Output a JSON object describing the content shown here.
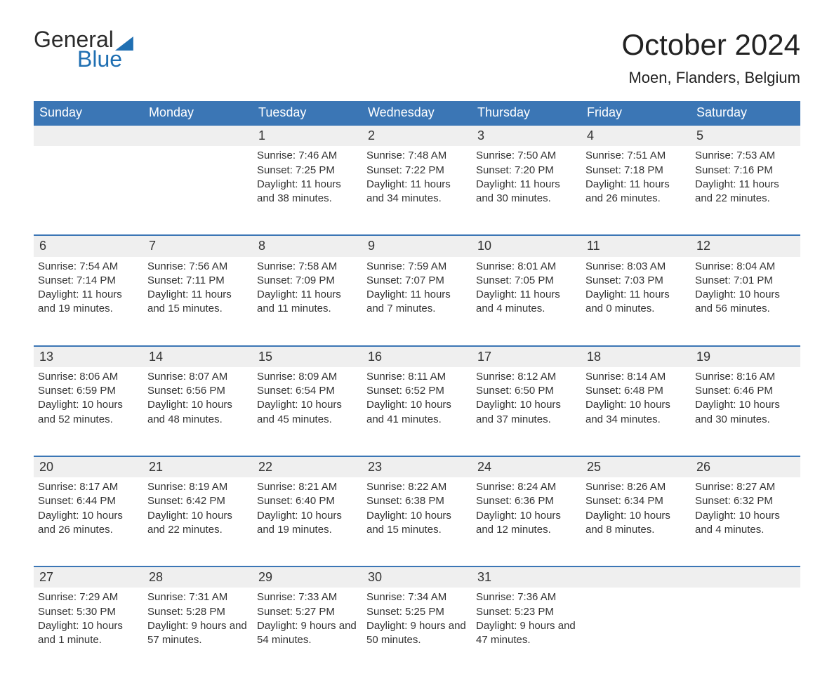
{
  "logo": {
    "line1": "General",
    "line2": "Blue"
  },
  "header": {
    "title": "October 2024",
    "location": "Moen, Flanders, Belgium"
  },
  "colors": {
    "header_blue": "#3b76b5",
    "accent_blue": "#1f6fb2",
    "row_band": "#efefef",
    "background": "#ffffff",
    "text": "#222222"
  },
  "calendar": {
    "type": "table",
    "columns": [
      "Sunday",
      "Monday",
      "Tuesday",
      "Wednesday",
      "Thursday",
      "Friday",
      "Saturday"
    ],
    "first_weekday_index": 2,
    "days": [
      {
        "n": 1,
        "sunrise": "7:46 AM",
        "sunset": "7:25 PM",
        "daylight": "11 hours and 38 minutes."
      },
      {
        "n": 2,
        "sunrise": "7:48 AM",
        "sunset": "7:22 PM",
        "daylight": "11 hours and 34 minutes."
      },
      {
        "n": 3,
        "sunrise": "7:50 AM",
        "sunset": "7:20 PM",
        "daylight": "11 hours and 30 minutes."
      },
      {
        "n": 4,
        "sunrise": "7:51 AM",
        "sunset": "7:18 PM",
        "daylight": "11 hours and 26 minutes."
      },
      {
        "n": 5,
        "sunrise": "7:53 AM",
        "sunset": "7:16 PM",
        "daylight": "11 hours and 22 minutes."
      },
      {
        "n": 6,
        "sunrise": "7:54 AM",
        "sunset": "7:14 PM",
        "daylight": "11 hours and 19 minutes."
      },
      {
        "n": 7,
        "sunrise": "7:56 AM",
        "sunset": "7:11 PM",
        "daylight": "11 hours and 15 minutes."
      },
      {
        "n": 8,
        "sunrise": "7:58 AM",
        "sunset": "7:09 PM",
        "daylight": "11 hours and 11 minutes."
      },
      {
        "n": 9,
        "sunrise": "7:59 AM",
        "sunset": "7:07 PM",
        "daylight": "11 hours and 7 minutes."
      },
      {
        "n": 10,
        "sunrise": "8:01 AM",
        "sunset": "7:05 PM",
        "daylight": "11 hours and 4 minutes."
      },
      {
        "n": 11,
        "sunrise": "8:03 AM",
        "sunset": "7:03 PM",
        "daylight": "11 hours and 0 minutes."
      },
      {
        "n": 12,
        "sunrise": "8:04 AM",
        "sunset": "7:01 PM",
        "daylight": "10 hours and 56 minutes."
      },
      {
        "n": 13,
        "sunrise": "8:06 AM",
        "sunset": "6:59 PM",
        "daylight": "10 hours and 52 minutes."
      },
      {
        "n": 14,
        "sunrise": "8:07 AM",
        "sunset": "6:56 PM",
        "daylight": "10 hours and 48 minutes."
      },
      {
        "n": 15,
        "sunrise": "8:09 AM",
        "sunset": "6:54 PM",
        "daylight": "10 hours and 45 minutes."
      },
      {
        "n": 16,
        "sunrise": "8:11 AM",
        "sunset": "6:52 PM",
        "daylight": "10 hours and 41 minutes."
      },
      {
        "n": 17,
        "sunrise": "8:12 AM",
        "sunset": "6:50 PM",
        "daylight": "10 hours and 37 minutes."
      },
      {
        "n": 18,
        "sunrise": "8:14 AM",
        "sunset": "6:48 PM",
        "daylight": "10 hours and 34 minutes."
      },
      {
        "n": 19,
        "sunrise": "8:16 AM",
        "sunset": "6:46 PM",
        "daylight": "10 hours and 30 minutes."
      },
      {
        "n": 20,
        "sunrise": "8:17 AM",
        "sunset": "6:44 PM",
        "daylight": "10 hours and 26 minutes."
      },
      {
        "n": 21,
        "sunrise": "8:19 AM",
        "sunset": "6:42 PM",
        "daylight": "10 hours and 22 minutes."
      },
      {
        "n": 22,
        "sunrise": "8:21 AM",
        "sunset": "6:40 PM",
        "daylight": "10 hours and 19 minutes."
      },
      {
        "n": 23,
        "sunrise": "8:22 AM",
        "sunset": "6:38 PM",
        "daylight": "10 hours and 15 minutes."
      },
      {
        "n": 24,
        "sunrise": "8:24 AM",
        "sunset": "6:36 PM",
        "daylight": "10 hours and 12 minutes."
      },
      {
        "n": 25,
        "sunrise": "8:26 AM",
        "sunset": "6:34 PM",
        "daylight": "10 hours and 8 minutes."
      },
      {
        "n": 26,
        "sunrise": "8:27 AM",
        "sunset": "6:32 PM",
        "daylight": "10 hours and 4 minutes."
      },
      {
        "n": 27,
        "sunrise": "7:29 AM",
        "sunset": "5:30 PM",
        "daylight": "10 hours and 1 minute."
      },
      {
        "n": 28,
        "sunrise": "7:31 AM",
        "sunset": "5:28 PM",
        "daylight": "9 hours and 57 minutes."
      },
      {
        "n": 29,
        "sunrise": "7:33 AM",
        "sunset": "5:27 PM",
        "daylight": "9 hours and 54 minutes."
      },
      {
        "n": 30,
        "sunrise": "7:34 AM",
        "sunset": "5:25 PM",
        "daylight": "9 hours and 50 minutes."
      },
      {
        "n": 31,
        "sunrise": "7:36 AM",
        "sunset": "5:23 PM",
        "daylight": "9 hours and 47 minutes."
      }
    ],
    "labels": {
      "sunrise_prefix": "Sunrise: ",
      "sunset_prefix": "Sunset: ",
      "daylight_prefix": "Daylight: "
    }
  }
}
